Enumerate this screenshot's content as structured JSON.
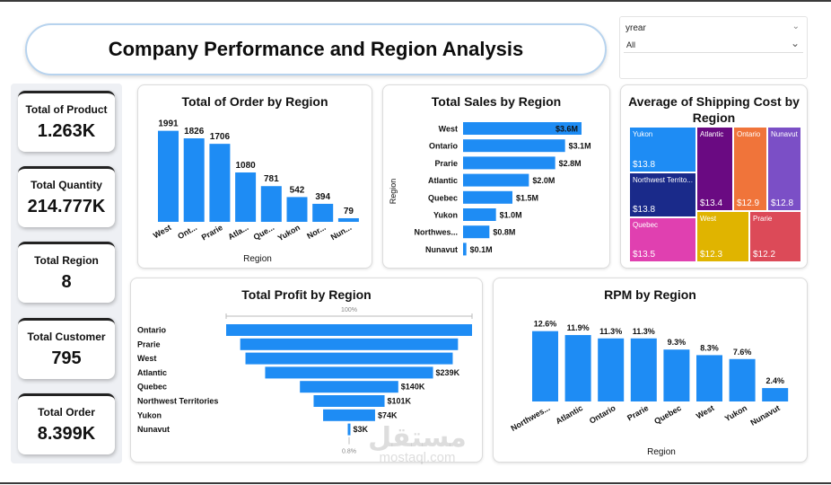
{
  "header": {
    "title": "Company Performance and Region Analysis"
  },
  "slicer": {
    "label": "yrear",
    "selected": "All"
  },
  "kpis": [
    {
      "label": "Total of Product",
      "value": "1.263K"
    },
    {
      "label": "Total Quantity",
      "value": "214.777K"
    },
    {
      "label": "Total Region",
      "value": "8"
    },
    {
      "label": "Total Customer",
      "value": "795"
    },
    {
      "label": "Total Order",
      "value": "8.399K"
    }
  ],
  "watermark": {
    "line1": "مستقل",
    "line2": "mostaql.com"
  },
  "chart_data": [
    {
      "id": "orders",
      "type": "bar",
      "title": "Total of Order by Region",
      "xlabel": "Region",
      "ylabel": "",
      "categories": [
        "West",
        "Ont...",
        "Prarie",
        "Atla...",
        "Que...",
        "Yukon",
        "Nor...",
        "Nun..."
      ],
      "values": [
        1991,
        1826,
        1706,
        1080,
        781,
        542,
        394,
        79
      ],
      "labels": [
        "1991",
        "1826",
        "1706",
        "1080",
        "781",
        "542",
        "394",
        "79"
      ],
      "ylim": [
        0,
        2200
      ],
      "color": "#1e8cf4"
    },
    {
      "id": "sales",
      "type": "bar",
      "orientation": "horizontal",
      "title": "Total Sales by Region",
      "xlabel": "",
      "ylabel": "Region",
      "categories": [
        "West",
        "Ontario",
        "Prarie",
        "Atlantic",
        "Quebec",
        "Yukon",
        "Northwes...",
        "Nunavut"
      ],
      "values": [
        3.6,
        3.1,
        2.8,
        2.0,
        1.5,
        1.0,
        0.8,
        0.1
      ],
      "labels": [
        "$3.6M",
        "$3.1M",
        "$2.8M",
        "$2.0M",
        "$1.5M",
        "$1.0M",
        "$0.8M",
        "$0.1M"
      ],
      "xlim": [
        0,
        3.6
      ],
      "color": "#1e8cf4"
    },
    {
      "id": "shipping",
      "type": "treemap",
      "title": "Average of Shipping Cost by Region",
      "items": [
        {
          "name": "Yukon",
          "value": 13.8,
          "label": "$13.8",
          "color": "#1e8cf4"
        },
        {
          "name": "Northwest Territo...",
          "value": 13.8,
          "label": "$13.8",
          "color": "#1a2a8a"
        },
        {
          "name": "Quebec",
          "value": 13.5,
          "label": "$13.5",
          "color": "#e040b0"
        },
        {
          "name": "Atlantic",
          "value": 13.4,
          "label": "$13.4",
          "color": "#6a0a82"
        },
        {
          "name": "Ontario",
          "value": 12.9,
          "label": "$12.9",
          "color": "#f0743a"
        },
        {
          "name": "Nunavut",
          "value": 12.8,
          "label": "$12.8",
          "color": "#7b4fc6"
        },
        {
          "name": "West",
          "value": 12.3,
          "label": "$12.3",
          "color": "#e0b400"
        },
        {
          "name": "Prarie",
          "value": 12.2,
          "label": "$12.2",
          "color": "#dc4a58"
        }
      ]
    },
    {
      "id": "profit",
      "type": "funnel",
      "title": "Total Profit by Region",
      "top_label": "100%",
      "bottom_label": "0.8%",
      "categories": [
        "Ontario",
        "Prarie",
        "West",
        "Atlantic",
        "Quebec",
        "Northwest Territories",
        "Yukon",
        "Nunavut"
      ],
      "values": [
        350,
        310,
        295,
        239,
        140,
        101,
        74,
        3
      ],
      "labels": [
        "",
        "",
        "",
        "$239K",
        "$140K",
        "$101K",
        "$74K",
        "$3K"
      ],
      "color": "#1e8cf4"
    },
    {
      "id": "rpm",
      "type": "bar",
      "title": "RPM by Region",
      "xlabel": "Region",
      "ylabel": "",
      "categories": [
        "Northwes...",
        "Atlantic",
        "Ontario",
        "Prarie",
        "Quebec",
        "West",
        "Yukon",
        "Nunavut"
      ],
      "values": [
        12.6,
        11.9,
        11.3,
        11.3,
        9.3,
        8.3,
        7.6,
        2.4
      ],
      "labels": [
        "12.6%",
        "11.9%",
        "11.3%",
        "11.3%",
        "9.3%",
        "8.3%",
        "7.6%",
        "2.4%"
      ],
      "ylim": [
        0,
        14
      ],
      "color": "#1e8cf4"
    }
  ]
}
